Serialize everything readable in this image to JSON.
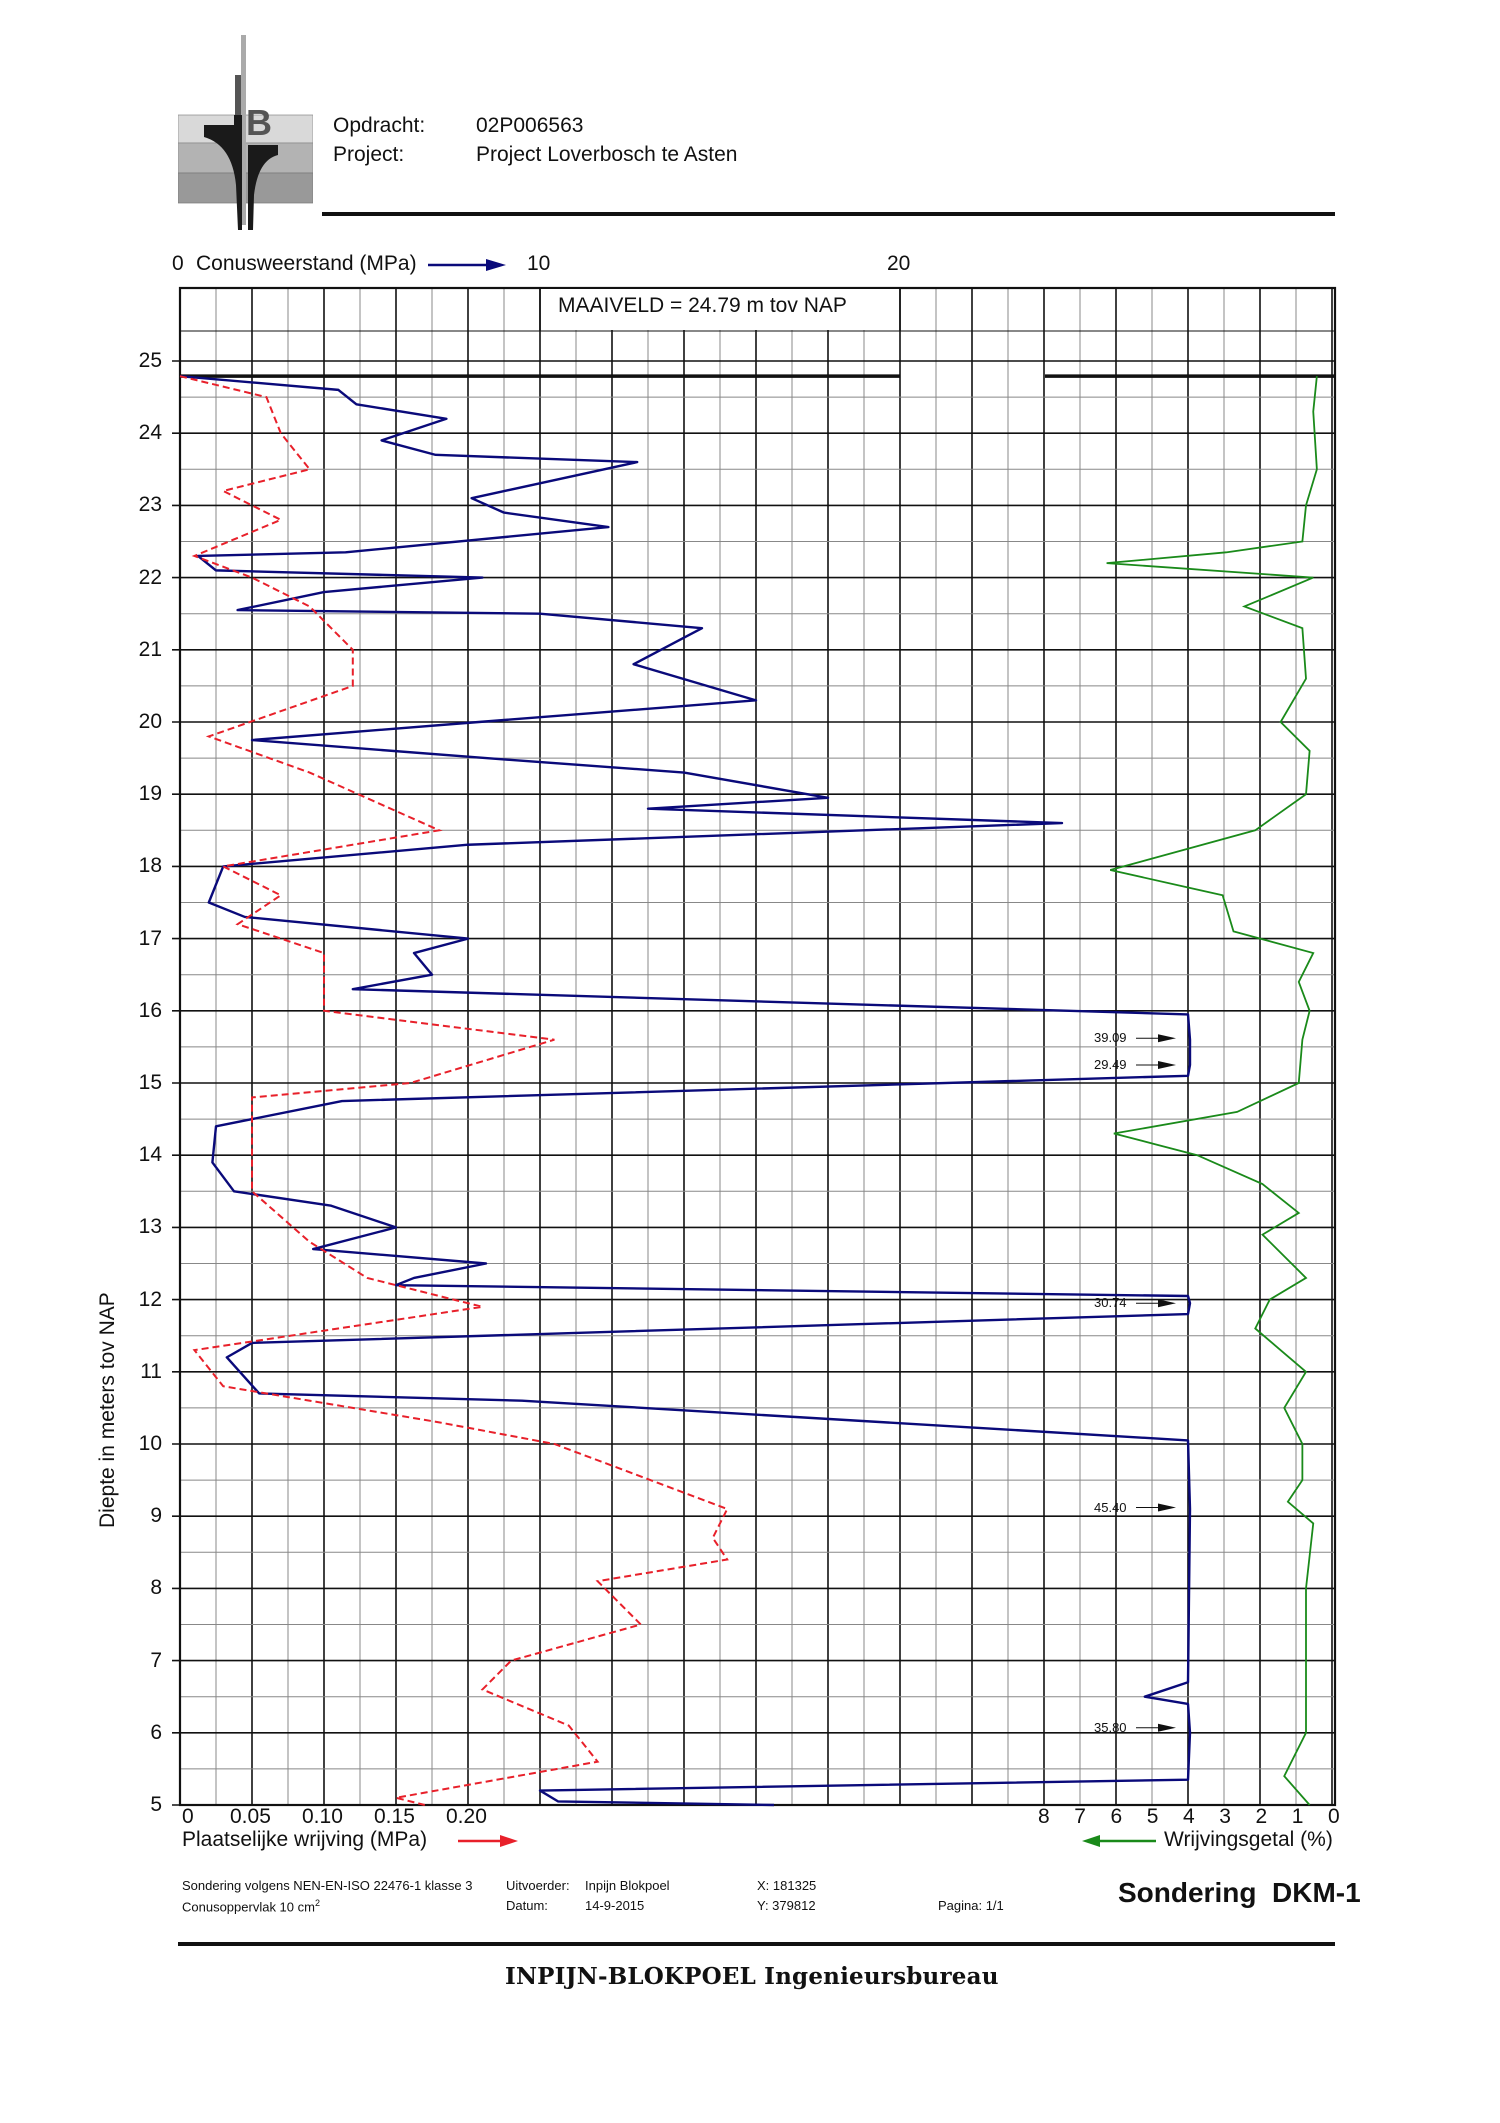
{
  "header": {
    "opdracht_label": "Opdracht:",
    "opdracht_value": "02P006563",
    "project_label": "Project:",
    "project_value": "Project Loverbosch te Asten"
  },
  "top_axis": {
    "zero": "0",
    "label": "Conusweerstand (MPa)",
    "ten": "10",
    "twenty": "20"
  },
  "maaiveld_text": "MAAIVELD =   24.79  m tov NAP",
  "footer": {
    "norm": "Sondering volgens NEN-EN-ISO 22476-1 klasse 3",
    "conus": "Conusoppervlak 10 cm",
    "conus_sup": "2",
    "uitvoerder_label": "Uitvoerder:",
    "uitvoerder_value": "Inpijn Blokpoel",
    "datum_label": "Datum:",
    "datum_value": "14-9-2015",
    "x_coord": "X: 181325",
    "y_coord": "Y: 379812",
    "pagina": "Pagina: 1/1",
    "title": "Sondering  DKM-1",
    "company": "INPIJN-BLOKPOEL Ingenieursbureau"
  },
  "bottom_axis": {
    "friction_ticks": [
      "0",
      "0.05",
      "0.10",
      "0.15",
      "0.20"
    ],
    "friction_label": "Plaatselijke wrijving (MPa)",
    "ratio_ticks": [
      "8",
      "7",
      "6",
      "5",
      "4",
      "3",
      "2",
      "1",
      "0"
    ],
    "ratio_label": "Wrijvingsgetal (%)"
  },
  "y_axis": {
    "title": "Diepte in meters tov NAP",
    "ticks": [
      "25",
      "24",
      "23",
      "22",
      "21",
      "20",
      "19",
      "18",
      "17",
      "16",
      "15",
      "14",
      "13",
      "12",
      "11",
      "10",
      "9",
      "8",
      "7",
      "6",
      "5"
    ]
  },
  "annotations": [
    {
      "label": "39.09",
      "depth": 15.62
    },
    {
      "label": "29.49",
      "depth": 15.25
    },
    {
      "label": "30.74",
      "depth": 11.95
    },
    {
      "label": "45.40",
      "depth": 9.12
    },
    {
      "label": "35.80",
      "depth": 6.07
    }
  ],
  "colors": {
    "cone": "#0a0a7a",
    "friction": "#e8202a",
    "ratio": "#1a8a1a",
    "grid_major": "#111111",
    "grid_minor": "#888888"
  },
  "chart_data": {
    "type": "line",
    "title": "Sondering DKM-1",
    "ylabel": "Diepte in meters tov NAP",
    "ylim": [
      5,
      25
    ],
    "surface_level_m_NAP": 24.79,
    "grid": true,
    "series": [
      {
        "name": "Conusweerstand (MPa)",
        "axis": "top, 0-20+ MPa",
        "style": "solid navy",
        "points": [
          [
            0,
            24.79
          ],
          [
            4.4,
            24.6
          ],
          [
            4.9,
            24.4
          ],
          [
            7.4,
            24.2
          ],
          [
            5.6,
            23.9
          ],
          [
            7.1,
            23.7
          ],
          [
            12.7,
            23.6
          ],
          [
            8.1,
            23.1
          ],
          [
            9.0,
            22.9
          ],
          [
            11.9,
            22.7
          ],
          [
            4.6,
            22.35
          ],
          [
            0.5,
            22.3
          ],
          [
            1.0,
            22.1
          ],
          [
            8.4,
            22.0
          ],
          [
            4.0,
            21.8
          ],
          [
            1.6,
            21.55
          ],
          [
            10.0,
            21.5
          ],
          [
            14.5,
            21.3
          ],
          [
            12.6,
            20.8
          ],
          [
            16.0,
            20.3
          ],
          [
            8.3,
            20.0
          ],
          [
            2.0,
            19.75
          ],
          [
            8.5,
            19.5
          ],
          [
            14.0,
            19.3
          ],
          [
            18.0,
            18.95
          ],
          [
            13.0,
            18.8
          ],
          [
            24.5,
            18.6
          ],
          [
            8.0,
            18.3
          ],
          [
            1.2,
            18.0
          ],
          [
            0.8,
            17.5
          ],
          [
            1.8,
            17.3
          ],
          [
            8.0,
            17.0
          ],
          [
            6.5,
            16.8
          ],
          [
            7.0,
            16.5
          ],
          [
            4.8,
            16.3
          ],
          [
            28.0,
            15.95
          ],
          [
            39.09,
            15.6
          ],
          [
            29.49,
            15.25
          ],
          [
            28.0,
            15.1
          ],
          [
            4.5,
            14.75
          ],
          [
            1.0,
            14.4
          ],
          [
            0.9,
            13.9
          ],
          [
            1.5,
            13.5
          ],
          [
            4.2,
            13.3
          ],
          [
            6.0,
            13.0
          ],
          [
            3.7,
            12.7
          ],
          [
            8.5,
            12.5
          ],
          [
            6.5,
            12.3
          ],
          [
            6.0,
            12.2
          ],
          [
            28.0,
            12.05
          ],
          [
            30.74,
            11.95
          ],
          [
            28.0,
            11.8
          ],
          [
            2.0,
            11.4
          ],
          [
            1.3,
            11.2
          ],
          [
            2.2,
            10.7
          ],
          [
            9.5,
            10.6
          ],
          [
            28.0,
            10.05
          ],
          [
            45.4,
            9.1
          ],
          [
            28.0,
            6.7
          ],
          [
            26.8,
            6.5
          ],
          [
            28.0,
            6.4
          ],
          [
            35.8,
            6.0
          ],
          [
            28.0,
            5.35
          ],
          [
            10.0,
            5.2
          ],
          [
            10.5,
            5.05
          ],
          [
            16.5,
            5.0
          ]
        ]
      },
      {
        "name": "Plaatselijke wrijving (MPa)",
        "axis": "bottom-left, 0-0.20 MPa",
        "style": "dashed red",
        "points": [
          [
            0,
            24.79
          ],
          [
            0.06,
            24.5
          ],
          [
            0.07,
            24.0
          ],
          [
            0.09,
            23.5
          ],
          [
            0.03,
            23.2
          ],
          [
            0.07,
            22.8
          ],
          [
            0.01,
            22.3
          ],
          [
            0.05,
            22.0
          ],
          [
            0.09,
            21.6
          ],
          [
            0.12,
            21.0
          ],
          [
            0.12,
            20.5
          ],
          [
            0.02,
            19.8
          ],
          [
            0.09,
            19.3
          ],
          [
            0.18,
            18.5
          ],
          [
            0.03,
            18.0
          ],
          [
            0.07,
            17.6
          ],
          [
            0.04,
            17.2
          ],
          [
            0.1,
            16.8
          ],
          [
            0.1,
            16.0
          ],
          [
            0.26,
            15.6
          ],
          [
            0.16,
            15.0
          ],
          [
            0.05,
            14.8
          ],
          [
            0.05,
            14.0
          ],
          [
            0.05,
            13.5
          ],
          [
            0.09,
            12.8
          ],
          [
            0.13,
            12.3
          ],
          [
            0.21,
            11.9
          ],
          [
            0.01,
            11.3
          ],
          [
            0.03,
            10.8
          ],
          [
            0.18,
            10.3
          ],
          [
            0.26,
            10.0
          ],
          [
            0.38,
            9.1
          ],
          [
            0.37,
            8.7
          ],
          [
            0.38,
            8.4
          ],
          [
            0.29,
            8.1
          ],
          [
            0.32,
            7.5
          ],
          [
            0.23,
            7.0
          ],
          [
            0.21,
            6.6
          ],
          [
            0.27,
            6.1
          ],
          [
            0.29,
            5.6
          ],
          [
            0.15,
            5.1
          ],
          [
            0.17,
            5.0
          ]
        ]
      },
      {
        "name": "Wrijvingsgetal (%)",
        "axis": "bottom-right, 8-0 % (reversed)",
        "style": "solid green",
        "points": [
          [
            0.5,
            24.79
          ],
          [
            0.6,
            24.3
          ],
          [
            0.5,
            23.5
          ],
          [
            0.8,
            23.0
          ],
          [
            0.9,
            22.5
          ],
          [
            3.0,
            22.35
          ],
          [
            6.3,
            22.2
          ],
          [
            0.6,
            22.0
          ],
          [
            2.5,
            21.6
          ],
          [
            0.9,
            21.3
          ],
          [
            0.8,
            20.6
          ],
          [
            1.5,
            20.0
          ],
          [
            0.7,
            19.6
          ],
          [
            0.8,
            19.0
          ],
          [
            2.2,
            18.5
          ],
          [
            6.2,
            17.95
          ],
          [
            3.1,
            17.6
          ],
          [
            2.8,
            17.1
          ],
          [
            0.6,
            16.8
          ],
          [
            1.0,
            16.4
          ],
          [
            0.7,
            16.0
          ],
          [
            0.9,
            15.6
          ],
          [
            1.0,
            15.0
          ],
          [
            2.7,
            14.6
          ],
          [
            6.1,
            14.3
          ],
          [
            3.8,
            14.0
          ],
          [
            2.0,
            13.6
          ],
          [
            1.0,
            13.2
          ],
          [
            2.0,
            12.9
          ],
          [
            0.8,
            12.3
          ],
          [
            1.8,
            12.0
          ],
          [
            2.2,
            11.6
          ],
          [
            1.5,
            11.3
          ],
          [
            0.8,
            11.0
          ],
          [
            1.4,
            10.5
          ],
          [
            0.9,
            10.0
          ],
          [
            0.9,
            9.5
          ],
          [
            1.3,
            9.2
          ],
          [
            0.6,
            8.9
          ],
          [
            0.8,
            8.0
          ],
          [
            0.8,
            7.0
          ],
          [
            0.8,
            6.0
          ],
          [
            1.4,
            5.4
          ],
          [
            0.7,
            5.0
          ]
        ]
      }
    ],
    "x_axes": {
      "cone_ticks": [
        "0",
        "10",
        "20"
      ],
      "friction_ticks": [
        "0",
        "0.05",
        "0.10",
        "0.15",
        "0.20"
      ],
      "ratio_ticks": [
        "8",
        "7",
        "6",
        "5",
        "4",
        "3",
        "2",
        "1",
        "0"
      ]
    },
    "annotations": [
      "39.09",
      "29.49",
      "30.74",
      "45.40",
      "35.80"
    ]
  }
}
